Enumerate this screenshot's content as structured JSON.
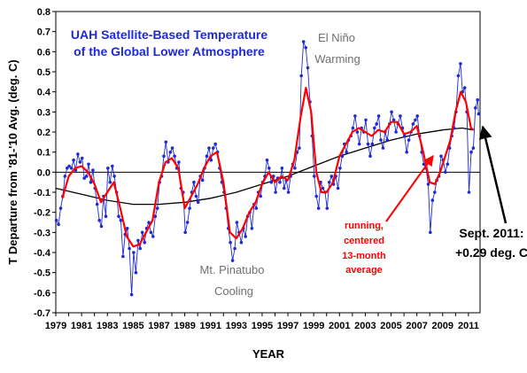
{
  "chart_data": {
    "type": "line",
    "title_line1": "UAH Satellite-Based Temperature",
    "title_line2": "of the Global Lower Atmosphere",
    "xlabel": "YEAR",
    "ylabel": "T Departure from '81-'10 Avg. (deg. C)",
    "xlim": [
      1979,
      2011.9
    ],
    "ylim": [
      -0.7,
      0.8
    ],
    "yticks": [
      "0.8",
      "0.7",
      "0.6",
      "0.5",
      "0.4",
      "0.3",
      "0.2",
      "0.1",
      "0.0",
      "-0.1",
      "-0.2",
      "-0.3",
      "-0.4",
      "-0.5",
      "-0.6",
      "-0.7"
    ],
    "xticks": [
      "1979",
      "1981",
      "1983",
      "1985",
      "1987",
      "1989",
      "1991",
      "1993",
      "1995",
      "1997",
      "1999",
      "2001",
      "2003",
      "2005",
      "2007",
      "2009",
      "2011"
    ],
    "grid": false,
    "colors": {
      "monthly": "#1e2ad2",
      "running_mean": "#ff0000",
      "trend_curve": "#000000",
      "title_text": "#1e2ad2",
      "event_text": "#707070",
      "running_text": "#ff0000"
    },
    "series": [
      {
        "role": "monthly",
        "points": [
          [
            1979.04,
            -0.24
          ],
          [
            1979.21,
            -0.26
          ],
          [
            1979.38,
            -0.18
          ],
          [
            1979.54,
            -0.12
          ],
          [
            1979.71,
            -0.02
          ],
          [
            1979.88,
            0.02
          ],
          [
            1980.04,
            0.03
          ],
          [
            1980.21,
            0.02
          ],
          [
            1980.38,
            0.06
          ],
          [
            1980.54,
            0.01
          ],
          [
            1980.71,
            0.09
          ],
          [
            1980.88,
            0.05
          ],
          [
            1981.04,
            0.07
          ],
          [
            1981.21,
            -0.03
          ],
          [
            1981.38,
            -0.02
          ],
          [
            1981.54,
            0.04
          ],
          [
            1981.71,
            -0.05
          ],
          [
            1981.88,
            0.01
          ],
          [
            1982.04,
            -0.08
          ],
          [
            1982.21,
            -0.16
          ],
          [
            1982.38,
            -0.24
          ],
          [
            1982.54,
            -0.27
          ],
          [
            1982.71,
            -0.12
          ],
          [
            1982.88,
            -0.22
          ],
          [
            1983.04,
            0.02
          ],
          [
            1983.21,
            -0.05
          ],
          [
            1983.38,
            0.03
          ],
          [
            1983.54,
            -0.02
          ],
          [
            1983.71,
            -0.1
          ],
          [
            1983.88,
            -0.22
          ],
          [
            1984.04,
            -0.24
          ],
          [
            1984.21,
            -0.42
          ],
          [
            1984.38,
            -0.31
          ],
          [
            1984.54,
            -0.28
          ],
          [
            1984.71,
            -0.38
          ],
          [
            1984.88,
            -0.61
          ],
          [
            1985.04,
            -0.4
          ],
          [
            1985.21,
            -0.5
          ],
          [
            1985.38,
            -0.34
          ],
          [
            1985.54,
            -0.38
          ],
          [
            1985.71,
            -0.3
          ],
          [
            1985.88,
            -0.35
          ],
          [
            1986.04,
            -0.28
          ],
          [
            1986.21,
            -0.25
          ],
          [
            1986.38,
            -0.3
          ],
          [
            1986.54,
            -0.32
          ],
          [
            1986.71,
            -0.22
          ],
          [
            1986.88,
            -0.18
          ],
          [
            1987.04,
            -0.05
          ],
          [
            1987.21,
            -0.02
          ],
          [
            1987.38,
            0.08
          ],
          [
            1987.54,
            0.15
          ],
          [
            1987.71,
            0.05
          ],
          [
            1987.88,
            0.1
          ],
          [
            1988.04,
            0.12
          ],
          [
            1988.21,
            0.08
          ],
          [
            1988.38,
            0.02
          ],
          [
            1988.54,
            0.05
          ],
          [
            1988.71,
            -0.08
          ],
          [
            1988.88,
            -0.1
          ],
          [
            1989.04,
            -0.3
          ],
          [
            1989.21,
            -0.25
          ],
          [
            1989.38,
            -0.18
          ],
          [
            1989.54,
            -0.1
          ],
          [
            1989.71,
            -0.05
          ],
          [
            1989.88,
            -0.12
          ],
          [
            1990.04,
            -0.15
          ],
          [
            1990.21,
            -0.02
          ],
          [
            1990.38,
            -0.04
          ],
          [
            1990.54,
            0.02
          ],
          [
            1990.71,
            0.08
          ],
          [
            1990.88,
            0.12
          ],
          [
            1991.04,
            0.06
          ],
          [
            1991.21,
            0.12
          ],
          [
            1991.38,
            0.14
          ],
          [
            1991.54,
            0.1
          ],
          [
            1991.71,
            0.02
          ],
          [
            1991.88,
            -0.05
          ],
          [
            1992.04,
            -0.1
          ],
          [
            1992.21,
            -0.18
          ],
          [
            1992.38,
            -0.28
          ],
          [
            1992.54,
            -0.35
          ],
          [
            1992.71,
            -0.44
          ],
          [
            1992.88,
            -0.38
          ],
          [
            1993.04,
            -0.25
          ],
          [
            1993.21,
            -0.3
          ],
          [
            1993.38,
            -0.35
          ],
          [
            1993.54,
            -0.28
          ],
          [
            1993.71,
            -0.32
          ],
          [
            1993.88,
            -0.22
          ],
          [
            1994.04,
            -0.2
          ],
          [
            1994.21,
            -0.28
          ],
          [
            1994.38,
            -0.16
          ],
          [
            1994.54,
            -0.18
          ],
          [
            1994.71,
            -0.1
          ],
          [
            1994.88,
            -0.12
          ],
          [
            1995.04,
            -0.05
          ],
          [
            1995.21,
            -0.02
          ],
          [
            1995.38,
            0.06
          ],
          [
            1995.54,
            0.02
          ],
          [
            1995.71,
            -0.05
          ],
          [
            1995.88,
            -0.02
          ],
          [
            1996.04,
            -0.1
          ],
          [
            1996.21,
            -0.03
          ],
          [
            1996.38,
            -0.05
          ],
          [
            1996.54,
            0.02
          ],
          [
            1996.71,
            -0.08
          ],
          [
            1996.88,
            -0.04
          ],
          [
            1997.04,
            -0.1
          ],
          [
            1997.21,
            -0.02
          ],
          [
            1997.38,
            0.04
          ],
          [
            1997.54,
            0.02
          ],
          [
            1997.71,
            0.1
          ],
          [
            1997.88,
            0.12
          ],
          [
            1998.04,
            0.48
          ],
          [
            1998.21,
            0.65
          ],
          [
            1998.38,
            0.62
          ],
          [
            1998.54,
            0.52
          ],
          [
            1998.71,
            0.35
          ],
          [
            1998.88,
            0.18
          ],
          [
            1999.04,
            -0.02
          ],
          [
            1999.21,
            -0.12
          ],
          [
            1999.38,
            -0.18
          ],
          [
            1999.54,
            -0.05
          ],
          [
            1999.71,
            -0.08
          ],
          [
            1999.88,
            -0.1
          ],
          [
            2000.04,
            -0.18
          ],
          [
            2000.21,
            -0.05
          ],
          [
            2000.38,
            -0.02
          ],
          [
            2000.54,
            -0.06
          ],
          [
            2000.71,
            -0.02
          ],
          [
            2000.88,
            -0.08
          ],
          [
            2001.04,
            0.02
          ],
          [
            2001.21,
            0.08
          ],
          [
            2001.38,
            0.14
          ],
          [
            2001.54,
            0.1
          ],
          [
            2001.71,
            0.16
          ],
          [
            2001.88,
            0.18
          ],
          [
            2002.04,
            0.22
          ],
          [
            2002.21,
            0.28
          ],
          [
            2002.38,
            0.2
          ],
          [
            2002.54,
            0.14
          ],
          [
            2002.71,
            0.22
          ],
          [
            2002.88,
            0.2
          ],
          [
            2003.04,
            0.26
          ],
          [
            2003.21,
            0.14
          ],
          [
            2003.38,
            0.08
          ],
          [
            2003.54,
            0.14
          ],
          [
            2003.71,
            0.22
          ],
          [
            2003.88,
            0.24
          ],
          [
            2004.04,
            0.28
          ],
          [
            2004.21,
            0.16
          ],
          [
            2004.38,
            0.12
          ],
          [
            2004.54,
            0.2
          ],
          [
            2004.71,
            0.16
          ],
          [
            2004.88,
            0.24
          ],
          [
            2005.04,
            0.3
          ],
          [
            2005.21,
            0.26
          ],
          [
            2005.38,
            0.2
          ],
          [
            2005.54,
            0.24
          ],
          [
            2005.71,
            0.28
          ],
          [
            2005.88,
            0.22
          ],
          [
            2006.04,
            0.18
          ],
          [
            2006.21,
            0.1
          ],
          [
            2006.38,
            0.16
          ],
          [
            2006.54,
            0.2
          ],
          [
            2006.71,
            0.24
          ],
          [
            2006.88,
            0.26
          ],
          [
            2007.04,
            0.28
          ],
          [
            2007.21,
            0.18
          ],
          [
            2007.38,
            0.1
          ],
          [
            2007.54,
            0.04
          ],
          [
            2007.71,
            0.02
          ],
          [
            2007.88,
            -0.06
          ],
          [
            2008.04,
            -0.3
          ],
          [
            2008.21,
            -0.14
          ],
          [
            2008.38,
            -0.1
          ],
          [
            2008.54,
            -0.04
          ],
          [
            2008.71,
            -0.02
          ],
          [
            2008.88,
            0.08
          ],
          [
            2009.04,
            0.06
          ],
          [
            2009.21,
            0.0
          ],
          [
            2009.38,
            0.04
          ],
          [
            2009.54,
            0.12
          ],
          [
            2009.71,
            0.18
          ],
          [
            2009.88,
            0.22
          ],
          [
            2010.04,
            0.3
          ],
          [
            2010.21,
            0.48
          ],
          [
            2010.38,
            0.54
          ],
          [
            2010.54,
            0.4
          ],
          [
            2010.71,
            0.42
          ],
          [
            2010.88,
            0.3
          ],
          [
            2011.04,
            -0.1
          ],
          [
            2011.21,
            0.1
          ],
          [
            2011.38,
            0.12
          ],
          [
            2011.54,
            0.32
          ],
          [
            2011.71,
            0.36
          ],
          [
            2011.79,
            0.29
          ]
        ]
      },
      {
        "role": "running_mean",
        "points": [
          [
            1979.5,
            -0.13
          ],
          [
            1980.0,
            -0.02
          ],
          [
            1980.5,
            0.02
          ],
          [
            1981.0,
            0.03
          ],
          [
            1981.5,
            0.0
          ],
          [
            1982.0,
            -0.06
          ],
          [
            1982.5,
            -0.15
          ],
          [
            1983.0,
            -0.1
          ],
          [
            1983.5,
            -0.05
          ],
          [
            1984.0,
            -0.18
          ],
          [
            1984.5,
            -0.32
          ],
          [
            1985.0,
            -0.37
          ],
          [
            1985.5,
            -0.36
          ],
          [
            1986.0,
            -0.3
          ],
          [
            1986.5,
            -0.24
          ],
          [
            1987.0,
            -0.05
          ],
          [
            1987.5,
            0.05
          ],
          [
            1988.0,
            0.07
          ],
          [
            1988.5,
            0.02
          ],
          [
            1989.0,
            -0.18
          ],
          [
            1989.5,
            -0.12
          ],
          [
            1990.0,
            -0.06
          ],
          [
            1990.5,
            0.02
          ],
          [
            1991.0,
            0.08
          ],
          [
            1991.5,
            0.1
          ],
          [
            1992.0,
            -0.05
          ],
          [
            1992.5,
            -0.3
          ],
          [
            1993.0,
            -0.33
          ],
          [
            1993.5,
            -0.28
          ],
          [
            1994.0,
            -0.2
          ],
          [
            1994.5,
            -0.15
          ],
          [
            1995.0,
            -0.06
          ],
          [
            1995.5,
            0.0
          ],
          [
            1996.0,
            -0.05
          ],
          [
            1996.5,
            -0.02
          ],
          [
            1997.0,
            -0.04
          ],
          [
            1997.5,
            0.06
          ],
          [
            1998.0,
            0.28
          ],
          [
            1998.4,
            0.42
          ],
          [
            1998.8,
            0.3
          ],
          [
            1999.2,
            0.0
          ],
          [
            1999.6,
            -0.1
          ],
          [
            2000.0,
            -0.1
          ],
          [
            2000.5,
            -0.05
          ],
          [
            2001.0,
            0.08
          ],
          [
            2001.5,
            0.14
          ],
          [
            2002.0,
            0.2
          ],
          [
            2002.5,
            0.22
          ],
          [
            2003.0,
            0.2
          ],
          [
            2003.5,
            0.18
          ],
          [
            2004.0,
            0.21
          ],
          [
            2004.5,
            0.2
          ],
          [
            2005.0,
            0.25
          ],
          [
            2005.5,
            0.25
          ],
          [
            2006.0,
            0.19
          ],
          [
            2006.5,
            0.2
          ],
          [
            2007.0,
            0.23
          ],
          [
            2007.5,
            0.1
          ],
          [
            2008.0,
            -0.05
          ],
          [
            2008.4,
            -0.06
          ],
          [
            2008.8,
            0.0
          ],
          [
            2009.2,
            0.08
          ],
          [
            2009.6,
            0.16
          ],
          [
            2010.0,
            0.3
          ],
          [
            2010.4,
            0.4
          ],
          [
            2010.8,
            0.35
          ],
          [
            2011.2,
            0.22
          ],
          [
            2011.4,
            0.21
          ]
        ]
      },
      {
        "role": "trend_curve",
        "points": [
          [
            1979.0,
            -0.08
          ],
          [
            1981.0,
            -0.11
          ],
          [
            1983.0,
            -0.14
          ],
          [
            1985.0,
            -0.16
          ],
          [
            1987.0,
            -0.16
          ],
          [
            1989.0,
            -0.15
          ],
          [
            1991.0,
            -0.13
          ],
          [
            1993.0,
            -0.1
          ],
          [
            1995.0,
            -0.06
          ],
          [
            1997.0,
            -0.02
          ],
          [
            1999.0,
            0.03
          ],
          [
            2001.0,
            0.08
          ],
          [
            2003.0,
            0.12
          ],
          [
            2005.0,
            0.16
          ],
          [
            2007.0,
            0.19
          ],
          [
            2009.0,
            0.21
          ],
          [
            2010.5,
            0.22
          ],
          [
            2011.4,
            0.21
          ]
        ]
      }
    ],
    "annotations": {
      "el_nino_line1": "El Niño",
      "el_nino_line2": "Warming",
      "pinatubo_line1": "Mt. Pinatubo",
      "pinatubo_line2": "Cooling",
      "running_line1": "running,",
      "running_line2": "centered",
      "running_line3": "13-month",
      "running_line4": "average",
      "latest_line1": "Sept. 2011:",
      "latest_line2": "+0.29 deg. C"
    }
  }
}
